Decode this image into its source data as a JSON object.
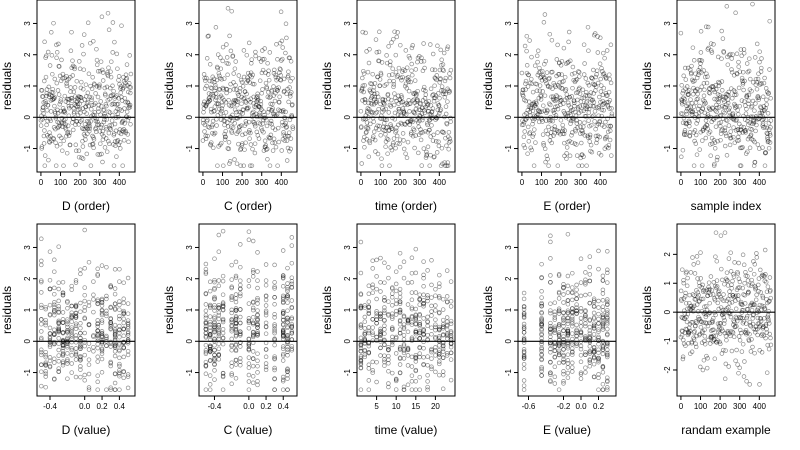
{
  "figure": {
    "ylabel": "residuals",
    "point_color": "#000000",
    "background": "#ffffff"
  },
  "chart_data": [
    {
      "type": "scatter",
      "xlabel": "D (order)",
      "ylabel": "residuals",
      "xlim": [
        -20,
        480
      ],
      "ylim": [
        -1.75,
        3.75
      ],
      "xticks": [
        0,
        100,
        200,
        300,
        400
      ],
      "yticks": [
        -1,
        0,
        1,
        2,
        3
      ],
      "hline": 0,
      "grid": false,
      "pattern": "order",
      "seed": 11
    },
    {
      "type": "scatter",
      "xlabel": "C (order)",
      "ylabel": "residuals",
      "xlim": [
        -20,
        480
      ],
      "ylim": [
        -1.75,
        3.75
      ],
      "xticks": [
        0,
        100,
        200,
        300,
        400
      ],
      "yticks": [
        -1,
        0,
        1,
        2,
        3
      ],
      "hline": 0,
      "grid": false,
      "pattern": "order",
      "seed": 23
    },
    {
      "type": "scatter",
      "xlabel": "time (order)",
      "ylabel": "residuals",
      "xlim": [
        -20,
        480
      ],
      "ylim": [
        -1.75,
        3.75
      ],
      "xticks": [
        0,
        100,
        200,
        300,
        400
      ],
      "yticks": [
        -1,
        0,
        1,
        2,
        3
      ],
      "hline": 0,
      "grid": false,
      "pattern": "order",
      "seed": 37
    },
    {
      "type": "scatter",
      "xlabel": "E (order)",
      "ylabel": "residuals",
      "xlim": [
        -20,
        480
      ],
      "ylim": [
        -1.75,
        3.75
      ],
      "xticks": [
        0,
        100,
        200,
        300,
        400
      ],
      "yticks": [
        -1,
        0,
        1,
        2,
        3
      ],
      "hline": 0,
      "grid": false,
      "pattern": "order",
      "seed": 41
    },
    {
      "type": "scatter",
      "xlabel": "sample index",
      "ylabel": "residuals",
      "xlim": [
        -20,
        480
      ],
      "ylim": [
        -1.75,
        3.75
      ],
      "xticks": [
        0,
        100,
        200,
        300,
        400
      ],
      "yticks": [
        -1,
        0,
        1,
        2,
        3
      ],
      "hline": 0,
      "grid": false,
      "pattern": "order",
      "seed": 53
    },
    {
      "type": "scatter",
      "xlabel": "D (value)",
      "ylabel": "residuals",
      "xlim": [
        -0.55,
        0.58
      ],
      "ylim": [
        -1.75,
        3.75
      ],
      "xticks": [
        -0.4,
        0,
        0.2,
        0.4
      ],
      "xtick_labels": [
        "-0.4",
        "0.0",
        "0.2",
        "0.4"
      ],
      "yticks": [
        -1,
        0,
        1,
        2,
        3
      ],
      "hline": 0,
      "grid": false,
      "pattern": "columns",
      "x_levels": [
        -0.5,
        -0.45,
        -0.4,
        -0.35,
        -0.3,
        -0.25,
        -0.2,
        -0.15,
        -0.1,
        -0.05,
        0,
        0.05,
        0.1,
        0.15,
        0.2,
        0.25,
        0.3,
        0.35,
        0.4,
        0.45,
        0.5
      ],
      "seed": 61
    },
    {
      "type": "scatter",
      "xlabel": "C (value)",
      "ylabel": "residuals",
      "xlim": [
        -0.58,
        0.56
      ],
      "ylim": [
        -1.75,
        3.75
      ],
      "xticks": [
        -0.4,
        0,
        0.2,
        0.4
      ],
      "xtick_labels": [
        "-0.4",
        "0.0",
        "0.2",
        "0.4"
      ],
      "yticks": [
        -1,
        0,
        1,
        2,
        3
      ],
      "hline": 0,
      "grid": false,
      "pattern": "columns",
      "x_levels": [
        -0.5,
        -0.45,
        -0.4,
        -0.35,
        -0.3,
        -0.2,
        -0.15,
        -0.1,
        0,
        0.05,
        0.1,
        0.2,
        0.3,
        0.4,
        0.45,
        0.5
      ],
      "seed": 67
    },
    {
      "type": "scatter",
      "xlabel": "time (value)",
      "ylabel": "residuals",
      "xlim": [
        0,
        25
      ],
      "ylim": [
        -1.75,
        3.75
      ],
      "xticks": [
        5,
        10,
        15,
        20
      ],
      "yticks": [
        -1,
        0,
        1,
        2,
        3
      ],
      "hline": 0,
      "grid": false,
      "pattern": "columns",
      "x_levels": [
        1,
        2,
        3,
        4,
        5,
        6,
        7,
        8,
        9,
        10,
        11,
        12,
        13,
        14,
        15,
        16,
        17,
        18,
        19,
        20,
        21,
        22,
        23,
        24
      ],
      "seed": 71
    },
    {
      "type": "scatter",
      "xlabel": "E (value)",
      "ylabel": "residuals",
      "xlim": [
        -0.72,
        0.4
      ],
      "ylim": [
        -1.75,
        3.75
      ],
      "xticks": [
        -0.6,
        -0.2,
        0,
        0.2
      ],
      "xtick_labels": [
        "-0.6",
        "-0.2",
        "0.0",
        "0.2"
      ],
      "yticks": [
        -1,
        0,
        1,
        2,
        3
      ],
      "hline": 0,
      "grid": false,
      "pattern": "columns",
      "x_levels": [
        -0.65,
        -0.45,
        -0.35,
        -0.3,
        -0.25,
        -0.2,
        -0.15,
        -0.1,
        -0.05,
        0,
        0.05,
        0.1,
        0.15,
        0.2,
        0.25,
        0.3
      ],
      "seed": 79
    },
    {
      "type": "scatter",
      "xlabel": "randam example",
      "ylabel": "residuals",
      "xlim": [
        -20,
        480
      ],
      "ylim": [
        -2.9,
        3.05
      ],
      "xticks": [
        0,
        100,
        200,
        300,
        400
      ],
      "yticks": [
        -2,
        -1,
        0,
        1,
        2
      ],
      "hline": 0,
      "grid": false,
      "pattern": "order_wide",
      "seed": 89
    }
  ]
}
